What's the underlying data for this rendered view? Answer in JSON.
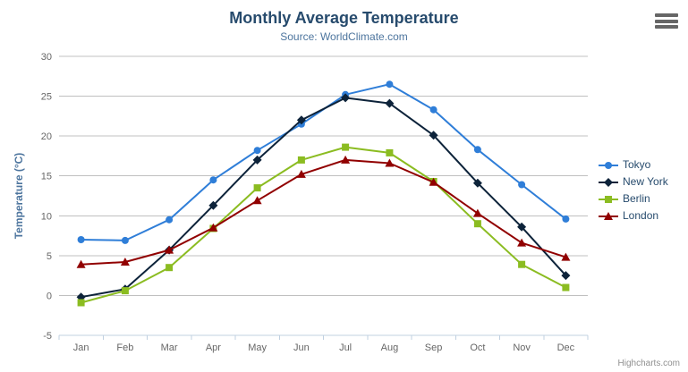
{
  "header": {
    "title": "Monthly Average Temperature",
    "subtitle": "Source: WorldClimate.com"
  },
  "toolbar": {
    "export_menu_icon": "hamburger-icon"
  },
  "credits": {
    "label": "Highcharts.com"
  },
  "chart_data": {
    "type": "line",
    "title": "Monthly Average Temperature",
    "subtitle": "Source: WorldClimate.com",
    "xlabel": "",
    "ylabel": "Temperature (°C)",
    "categories": [
      "Jan",
      "Feb",
      "Mar",
      "Apr",
      "May",
      "Jun",
      "Jul",
      "Aug",
      "Sep",
      "Oct",
      "Nov",
      "Dec"
    ],
    "ylim": [
      -5,
      30
    ],
    "yticks": [
      -5,
      0,
      5,
      10,
      15,
      20,
      25,
      30
    ],
    "grid": true,
    "legend_position": "right",
    "series": [
      {
        "name": "Tokyo",
        "color": "#2f7ed8",
        "marker": "circle",
        "values": [
          7.0,
          6.9,
          9.5,
          14.5,
          18.2,
          21.5,
          25.2,
          26.5,
          23.3,
          18.3,
          13.9,
          9.6
        ]
      },
      {
        "name": "New York",
        "color": "#0d233a",
        "marker": "diamond",
        "values": [
          -0.2,
          0.8,
          5.7,
          11.3,
          17.0,
          22.0,
          24.8,
          24.1,
          20.1,
          14.1,
          8.6,
          2.5
        ]
      },
      {
        "name": "Berlin",
        "color": "#8bbc21",
        "marker": "square",
        "values": [
          -0.9,
          0.6,
          3.5,
          8.4,
          13.5,
          17.0,
          18.6,
          17.9,
          14.3,
          9.0,
          3.9,
          1.0
        ]
      },
      {
        "name": "London",
        "color": "#910000",
        "marker": "triangle",
        "values": [
          3.9,
          4.2,
          5.7,
          8.5,
          11.9,
          15.2,
          17.0,
          16.6,
          14.2,
          10.3,
          6.6,
          4.8
        ]
      }
    ],
    "palette": {
      "grid_line": "#c0c0c0",
      "axis_line": "#c0d0e0",
      "axis_label": "#666666",
      "axis_title": "#4d759e",
      "title": "#274b6d",
      "subtitle": "#4d759e",
      "legend_text": "#274b6d",
      "credits_text": "#909090"
    }
  }
}
